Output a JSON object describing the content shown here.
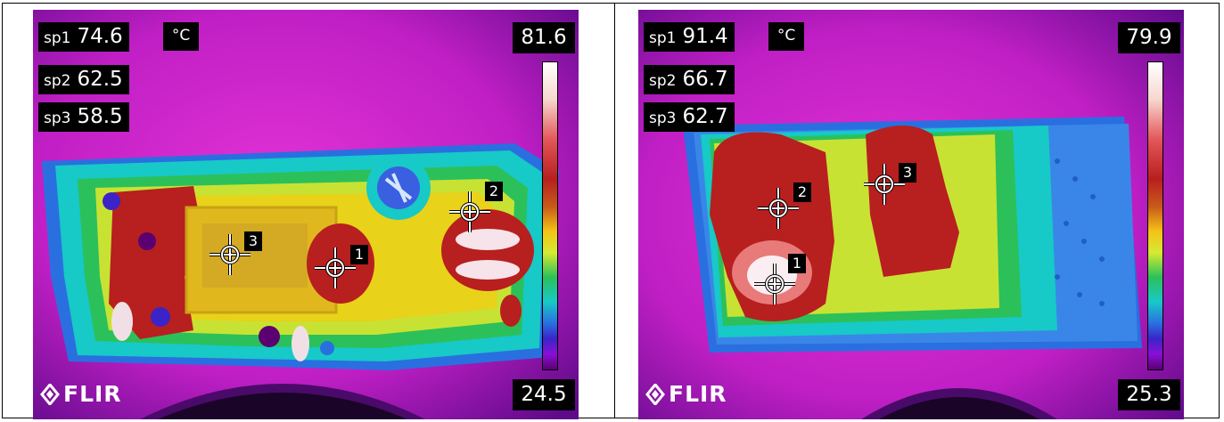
{
  "left_panel": {
    "spots": [
      {
        "label": "sp1",
        "value": "74.6"
      },
      {
        "label": "sp2",
        "value": "62.5"
      },
      {
        "label": "sp3",
        "value": "58.5"
      }
    ],
    "unit": "°C",
    "scale_max": "81.6",
    "scale_min": "24.5",
    "logo": "FLIR",
    "markers": [
      "1",
      "2",
      "3"
    ]
  },
  "right_panel": {
    "spots": [
      {
        "label": "sp1",
        "value": "91.4"
      },
      {
        "label": "sp2",
        "value": "66.7"
      },
      {
        "label": "sp3",
        "value": "62.7"
      }
    ],
    "unit": "°C",
    "scale_max": "79.9",
    "scale_min": "25.3",
    "logo": "FLIR",
    "markers": [
      "1",
      "2",
      "3"
    ]
  },
  "colors": {
    "background_magenta": "#c21fc6",
    "hot_red": "#b81f1f",
    "warm_yellow": "#e8d21a",
    "cool_cyan": "#17c9c7",
    "overlay_black": "#000000"
  }
}
